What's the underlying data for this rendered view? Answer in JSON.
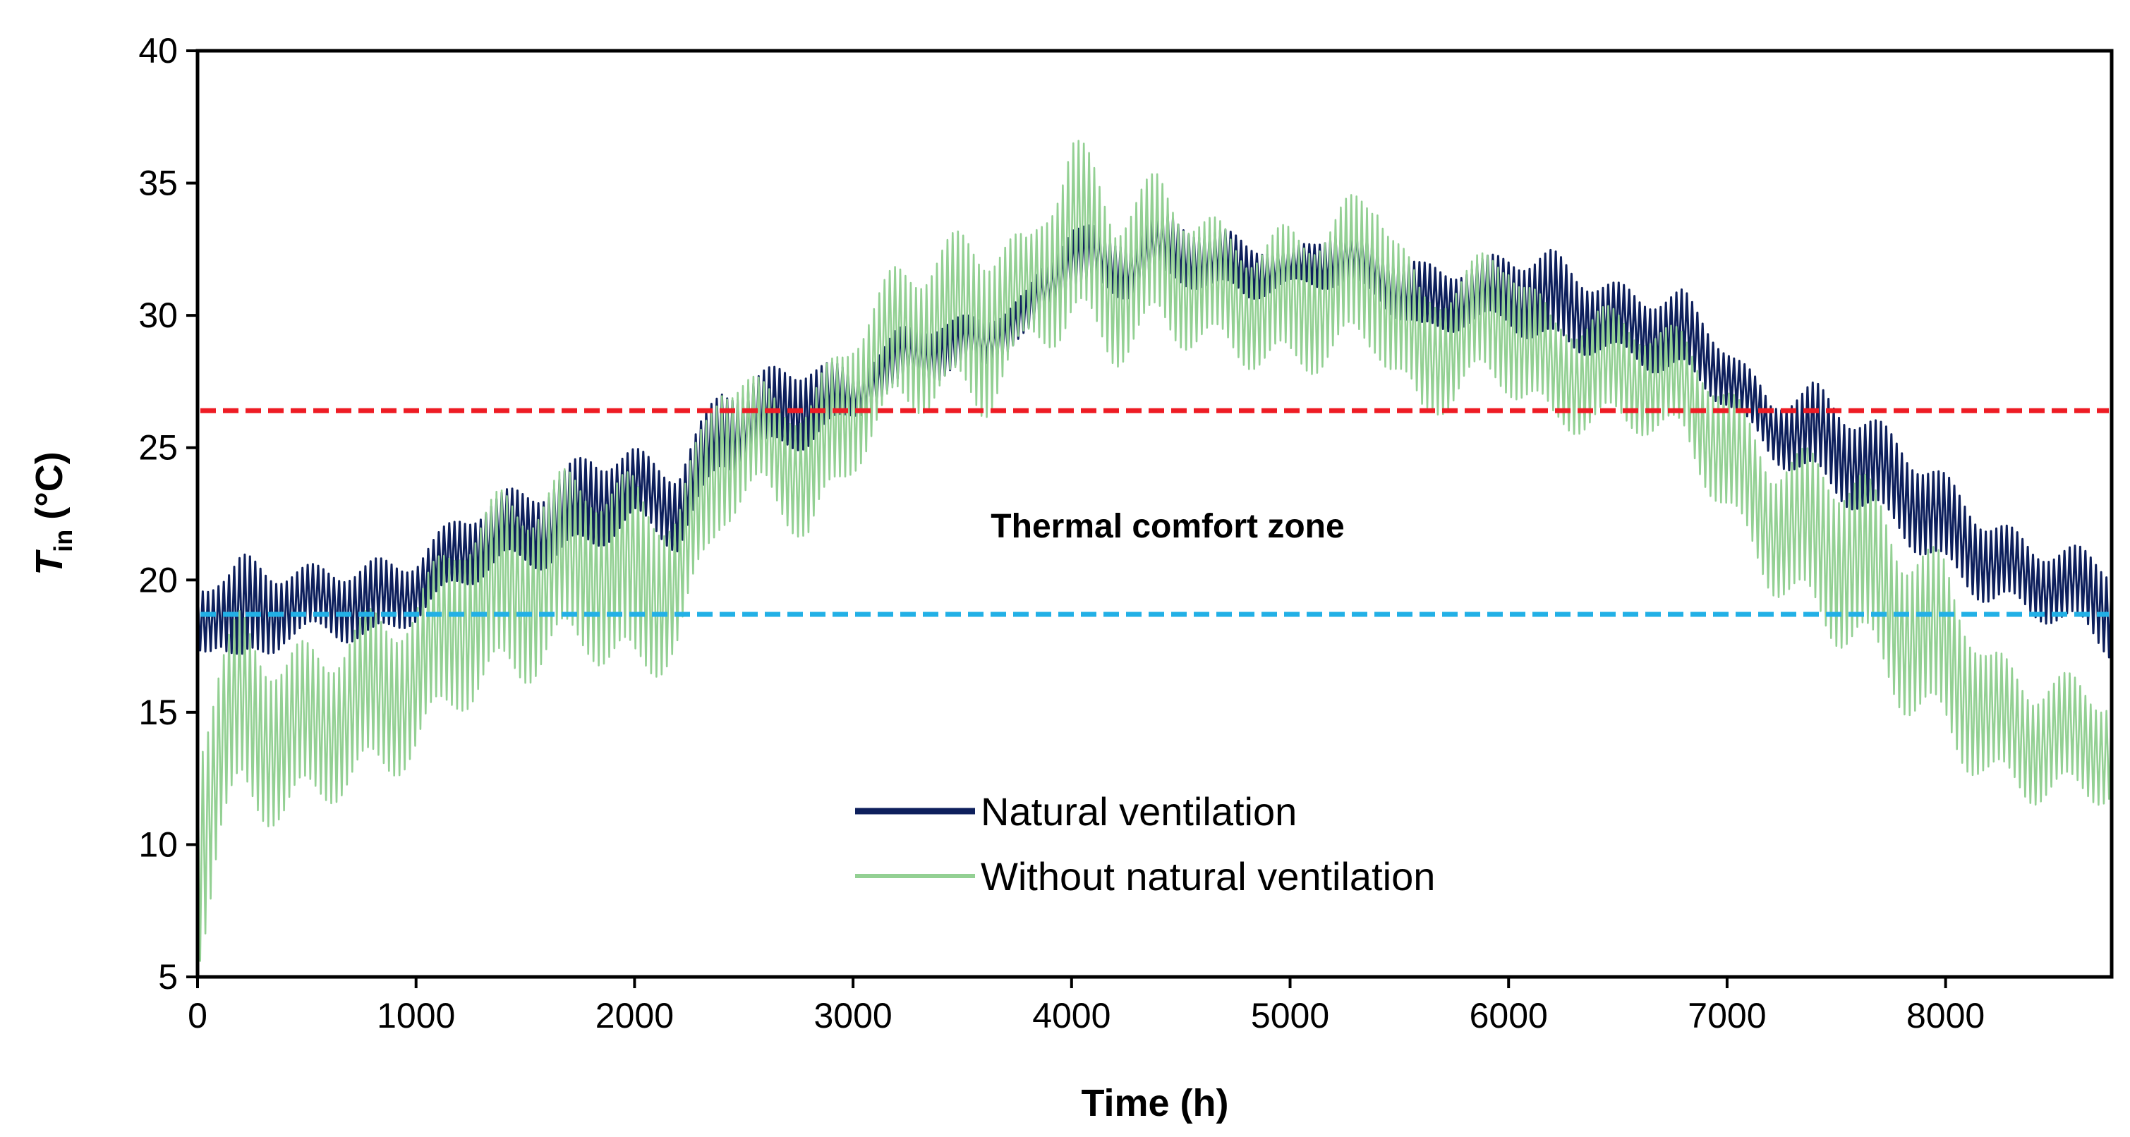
{
  "chart_data": {
    "type": "line",
    "xlabel": "Time (h)",
    "ylabel": {
      "main": "T",
      "sub": "in",
      "unit": "(°C)"
    },
    "xlim": [
      0,
      8760
    ],
    "ylim": [
      5,
      40
    ],
    "xticks": [
      0,
      1000,
      2000,
      3000,
      4000,
      5000,
      6000,
      7000,
      8000
    ],
    "yticks": [
      5,
      10,
      15,
      20,
      25,
      30,
      35,
      40
    ],
    "annotation": "Thermal comfort zone",
    "thresholds": [
      {
        "name": "upper-comfort-limit",
        "y": 26.4,
        "color": "#ee1c24",
        "style": "dashed"
      },
      {
        "name": "lower-comfort-limit",
        "y": 18.7,
        "color": "#22b0e6",
        "style": "dashed"
      }
    ],
    "series": [
      {
        "name": "Natural ventilation",
        "color": "#0d1f5c",
        "envelope": {
          "x": [
            0,
            100,
            200,
            400,
            600,
            800,
            1000,
            1200,
            1400,
            1600,
            1800,
            2000,
            2200,
            2400,
            2600,
            2800,
            3000,
            3200,
            3400,
            3600,
            3800,
            4000,
            4200,
            4400,
            4600,
            4800,
            5000,
            5200,
            5400,
            5600,
            5800,
            6000,
            6200,
            6400,
            6600,
            6800,
            7000,
            7200,
            7400,
            7600,
            7800,
            8000,
            8200,
            8400,
            8600,
            8760
          ],
          "high": [
            20.0,
            20.5,
            21.0,
            20.6,
            20.6,
            20.8,
            21.0,
            22.6,
            23.4,
            23.8,
            25.0,
            25.0,
            24.4,
            27.5,
            28.0,
            28.5,
            28.0,
            29.5,
            30.0,
            30.0,
            31.0,
            33.8,
            33.0,
            34.0,
            33.5,
            33.0,
            32.5,
            33.5,
            33.0,
            32.0,
            32.0,
            32.5,
            32.5,
            31.5,
            31.0,
            31.0,
            29.0,
            27.0,
            27.5,
            26.5,
            25.5,
            24.0,
            22.5,
            21.5,
            21.3,
            21.0
          ],
          "low": [
            17.0,
            17.5,
            16.0,
            17.6,
            17.8,
            17.4,
            18.4,
            19.6,
            20.4,
            20.4,
            21.0,
            22.0,
            21.0,
            24.0,
            24.5,
            25.0,
            26.0,
            27.0,
            27.5,
            28.0,
            29.0,
            31.0,
            30.5,
            31.0,
            31.0,
            30.5,
            31.0,
            31.0,
            30.5,
            29.0,
            29.5,
            29.5,
            28.5,
            28.5,
            28.0,
            27.5,
            26.5,
            24.5,
            23.5,
            22.5,
            21.5,
            20.0,
            19.0,
            18.5,
            18.0,
            17.0
          ]
        }
      },
      {
        "name": "Without natural ventilation",
        "color": "#93d093",
        "envelope": {
          "x": [
            0,
            100,
            200,
            400,
            600,
            800,
            1000,
            1200,
            1400,
            1600,
            1800,
            2000,
            2200,
            2400,
            2600,
            2800,
            3000,
            3200,
            3400,
            3600,
            3800,
            4000,
            4200,
            4400,
            4600,
            4800,
            5000,
            5200,
            5400,
            5600,
            5800,
            6000,
            6200,
            6400,
            6600,
            6800,
            7000,
            7200,
            7400,
            7600,
            7800,
            8000,
            8200,
            8400,
            8600,
            8760
          ],
          "high": [
            15.5,
            17.5,
            19.0,
            17.5,
            18.0,
            19.0,
            19.5,
            22.5,
            23.5,
            24.0,
            24.5,
            24.0,
            23.0,
            28.5,
            27.5,
            27.0,
            30.0,
            32.0,
            33.0,
            33.5,
            33.0,
            37.3,
            34.5,
            35.5,
            34.0,
            33.0,
            33.5,
            34.0,
            35.5,
            31.0,
            32.0,
            33.0,
            30.0,
            30.5,
            30.0,
            29.5,
            27.5,
            25.0,
            25.0,
            24.5,
            22.0,
            21.0,
            17.5,
            16.5,
            16.5,
            16.0
          ],
          "low": [
            5.0,
            9.5,
            11.0,
            10.5,
            11.5,
            12.0,
            13.0,
            15.0,
            15.5,
            16.5,
            17.0,
            15.5,
            17.0,
            22.0,
            23.0,
            21.0,
            24.0,
            26.0,
            26.5,
            26.0,
            28.5,
            29.0,
            28.0,
            29.0,
            28.5,
            28.0,
            27.5,
            28.0,
            28.5,
            25.5,
            27.0,
            27.0,
            25.5,
            25.5,
            25.5,
            25.0,
            22.0,
            19.5,
            18.0,
            17.0,
            15.0,
            13.5,
            12.0,
            11.5,
            11.5,
            11.5
          ]
        }
      }
    ]
  }
}
